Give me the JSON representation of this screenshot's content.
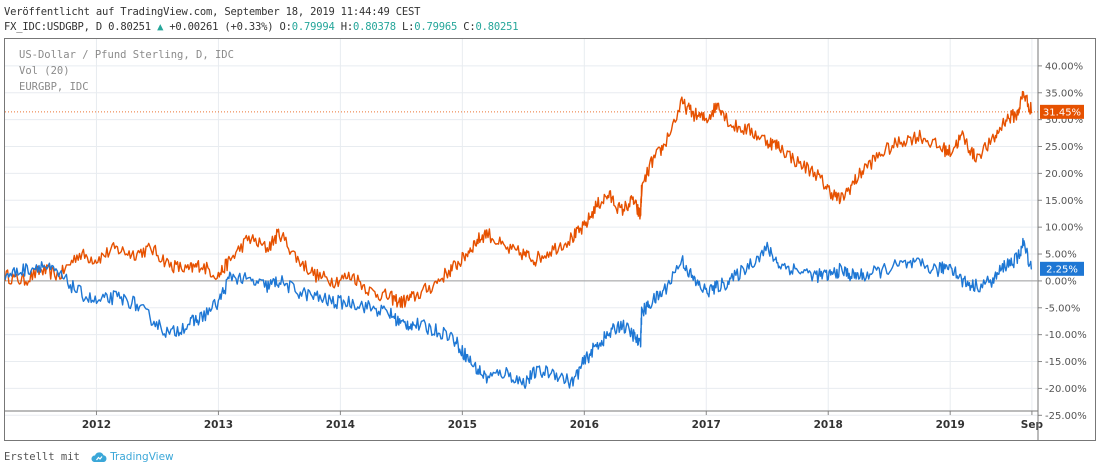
{
  "header": {
    "published": "Veröffentlicht auf TradingView.com, September 18, 2019 11:44:49 CEST",
    "symbol": "FX_IDC:USDGBP, D",
    "last_value": "0.80251",
    "change": "+0.00261 (+0.33%)",
    "o_label": "O:",
    "o_value": "0.79994",
    "h_label": "H:",
    "h_value": "0.80378",
    "l_label": "L:",
    "l_value": "0.79965",
    "c_label": "C:",
    "c_value": "0.80251"
  },
  "legend": {
    "line1": "US-Dollar / Pfund Sterling, D, IDC",
    "line2": "Vol (20)",
    "line3": "EURGBP, IDC"
  },
  "footer": {
    "created_with": "Erstellt mit",
    "brand": "TradingView"
  },
  "colors": {
    "usdgbp": "#1e77d4",
    "eurgbp": "#e65100",
    "grid": "#e8ecf0",
    "axis_text": "#555555"
  },
  "chart_data": {
    "type": "line",
    "title": "",
    "xlabel": "",
    "ylabel": "",
    "ylim": [
      -25,
      42.5
    ],
    "y_ticks": [
      "40.00%",
      "35.00%",
      "30.00%",
      "25.00%",
      "20.00%",
      "15.00%",
      "10.00%",
      "5.00%",
      "0.00%",
      "-5.00%",
      "-10.00%",
      "-15.00%",
      "-20.00%",
      "-25.00%"
    ],
    "y_tick_values": [
      40,
      35,
      30,
      25,
      20,
      15,
      10,
      5,
      0,
      -5,
      -10,
      -15,
      -20,
      -25
    ],
    "x_ticks": [
      "2012",
      "2013",
      "2014",
      "2015",
      "2016",
      "2017",
      "2018",
      "2019",
      "Sep"
    ],
    "x_tick_values": [
      2012.0,
      2013.0,
      2014.0,
      2015.0,
      2016.0,
      2017.0,
      2018.0,
      2019.0,
      2019.67
    ],
    "xlim": [
      2011.25,
      2019.72
    ],
    "grid": true,
    "series": [
      {
        "key": "eurgbp",
        "last_label": "31.45%",
        "x": [
          2011.25,
          2011.4,
          2011.55,
          2011.7,
          2011.85,
          2012.0,
          2012.15,
          2012.3,
          2012.45,
          2012.6,
          2012.75,
          2012.85,
          2013.0,
          2013.1,
          2013.25,
          2013.4,
          2013.5,
          2013.65,
          2013.8,
          2013.95,
          2014.1,
          2014.25,
          2014.4,
          2014.5,
          2014.6,
          2014.75,
          2014.9,
          2015.0,
          2015.1,
          2015.2,
          2015.35,
          2015.5,
          2015.6,
          2015.75,
          2015.9,
          2016.0,
          2016.1,
          2016.2,
          2016.3,
          2016.4,
          2016.46,
          2016.47,
          2016.55,
          2016.65,
          2016.8,
          2016.9,
          2017.0,
          2017.1,
          2017.2,
          2017.35,
          2017.5,
          2017.6,
          2017.75,
          2017.9,
          2018.0,
          2018.1,
          2018.2,
          2018.3,
          2018.45,
          2018.6,
          2018.75,
          2018.9,
          2019.0,
          2019.1,
          2019.2,
          2019.35,
          2019.45,
          2019.55,
          2019.6,
          2019.67
        ],
        "values": [
          1,
          0,
          2,
          1,
          5,
          4,
          6,
          5,
          6,
          3,
          2,
          3,
          1,
          4,
          8,
          6,
          9,
          4,
          1,
          0,
          1,
          -2,
          -3,
          -4,
          -3,
          -1,
          2,
          4,
          7,
          9,
          6,
          5,
          4,
          6,
          8,
          10,
          14,
          16,
          13,
          15,
          12,
          17,
          22,
          25,
          33,
          31,
          30,
          33,
          29,
          28,
          26,
          25,
          22,
          20,
          17,
          15,
          18,
          21,
          24,
          26,
          27,
          25,
          24,
          27,
          23,
          26,
          30,
          31,
          35,
          31.45
        ]
      },
      {
        "key": "usdgbp",
        "last_label": "2.25%",
        "x": [
          2011.25,
          2011.4,
          2011.55,
          2011.7,
          2011.85,
          2012.0,
          2012.15,
          2012.3,
          2012.45,
          2012.6,
          2012.75,
          2012.85,
          2013.0,
          2013.1,
          2013.25,
          2013.4,
          2013.5,
          2013.65,
          2013.8,
          2013.95,
          2014.1,
          2014.25,
          2014.4,
          2014.5,
          2014.6,
          2014.75,
          2014.9,
          2015.0,
          2015.1,
          2015.2,
          2015.35,
          2015.5,
          2015.6,
          2015.75,
          2015.9,
          2016.0,
          2016.1,
          2016.2,
          2016.3,
          2016.4,
          2016.46,
          2016.47,
          2016.55,
          2016.65,
          2016.8,
          2016.9,
          2017.0,
          2017.1,
          2017.2,
          2017.35,
          2017.5,
          2017.6,
          2017.75,
          2017.9,
          2018.0,
          2018.1,
          2018.2,
          2018.3,
          2018.45,
          2018.6,
          2018.75,
          2018.9,
          2019.0,
          2019.1,
          2019.2,
          2019.35,
          2019.45,
          2019.55,
          2019.6,
          2019.67
        ],
        "values": [
          1,
          2,
          3,
          1,
          -2,
          -4,
          -3,
          -4,
          -7,
          -10,
          -8,
          -7,
          -4,
          1,
          0,
          -1,
          0,
          -2,
          -3,
          -4,
          -4,
          -5,
          -6,
          -8,
          -8,
          -9,
          -10,
          -13,
          -16,
          -18,
          -17,
          -19,
          -17,
          -17,
          -19,
          -15,
          -12,
          -10,
          -8,
          -10,
          -12,
          -6,
          -4,
          -2,
          4,
          0,
          -2,
          -1,
          0,
          3,
          6,
          3,
          2,
          1,
          1,
          2,
          1,
          1,
          2,
          3,
          3,
          2,
          3,
          0,
          -1,
          0,
          3,
          4,
          7,
          2.25
        ]
      }
    ]
  }
}
